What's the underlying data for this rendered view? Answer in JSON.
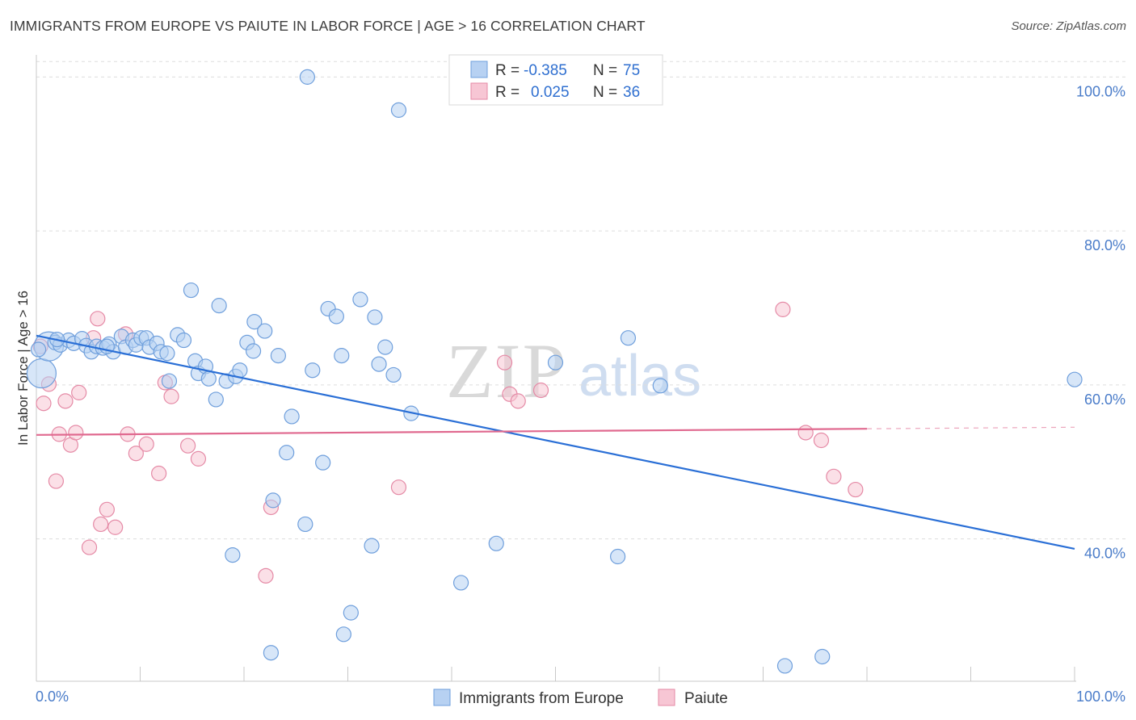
{
  "title": "IMMIGRANTS FROM EUROPE VS PAIUTE IN LABOR FORCE | AGE > 16 CORRELATION CHART",
  "source": "Source: ZipAtlas.com",
  "watermark": {
    "zip": "ZIP",
    "atlas": "atlas"
  },
  "legend": {
    "rows": [
      {
        "r_label": "R =",
        "r_value": "-0.385",
        "n_label": "N =",
        "n_value": "75"
      },
      {
        "r_label": "R =",
        "r_value": "0.025",
        "n_label": "N =",
        "n_value": "36"
      }
    ]
  },
  "bottom_legend": [
    "Immigrants from Europe",
    "Paiute"
  ],
  "colors": {
    "blue_fill": "#b7d1f2",
    "blue_stroke": "#6f9fdc",
    "blue_line": "#2a6fd6",
    "pink_fill": "#f7c6d4",
    "pink_stroke": "#e58aa6",
    "pink_line": "#e0698f",
    "axis_text": "#4a7cc9",
    "grid": "#dddddd"
  },
  "chart_data": {
    "type": "scatter",
    "title": "IMMIGRANTS FROM EUROPE VS PAIUTE IN LABOR FORCE | AGE > 16 CORRELATION CHART",
    "xlabel": "",
    "ylabel": "In Labor Force | Age > 16",
    "xlim": [
      0,
      100
    ],
    "ylim": [
      21.5,
      103.5
    ],
    "x_tick_labels": [
      "0.0%",
      "100.0%"
    ],
    "y_ticks": [
      40,
      60,
      80,
      100
    ],
    "y_tick_labels": [
      "40.0%",
      "60.0%",
      "80.0%",
      "100.0%"
    ],
    "grid": true,
    "legend_position": "top-center",
    "series": [
      {
        "name": "Immigrants from Europe",
        "r": -0.385,
        "n": 75,
        "trend": {
          "x": [
            0,
            100
          ],
          "y": [
            66.4,
            38.7
          ]
        },
        "points": [
          {
            "x": 0.5,
            "y": 61.5,
            "big": true
          },
          {
            "x": 1.2,
            "y": 65.0,
            "big": true
          },
          {
            "x": 1.8,
            "y": 65.5
          },
          {
            "x": 2.3,
            "y": 65.2
          },
          {
            "x": 3.1,
            "y": 65.8
          },
          {
            "x": 3.6,
            "y": 65.4
          },
          {
            "x": 4.4,
            "y": 66.0
          },
          {
            "x": 4.8,
            "y": 65.1
          },
          {
            "x": 5.3,
            "y": 64.3
          },
          {
            "x": 5.8,
            "y": 65.0
          },
          {
            "x": 6.4,
            "y": 64.8
          },
          {
            "x": 7.0,
            "y": 65.3
          },
          {
            "x": 7.4,
            "y": 64.3
          },
          {
            "x": 8.2,
            "y": 66.3
          },
          {
            "x": 8.6,
            "y": 64.9
          },
          {
            "x": 9.3,
            "y": 65.8
          },
          {
            "x": 9.6,
            "y": 65.2
          },
          {
            "x": 10.1,
            "y": 66.1
          },
          {
            "x": 10.6,
            "y": 66.1
          },
          {
            "x": 10.9,
            "y": 64.9
          },
          {
            "x": 11.6,
            "y": 65.4
          },
          {
            "x": 12.0,
            "y": 64.3
          },
          {
            "x": 12.6,
            "y": 64.1
          },
          {
            "x": 12.8,
            "y": 60.5
          },
          {
            "x": 13.6,
            "y": 66.5
          },
          {
            "x": 14.2,
            "y": 65.8
          },
          {
            "x": 14.9,
            "y": 72.3
          },
          {
            "x": 15.3,
            "y": 63.1
          },
          {
            "x": 15.6,
            "y": 61.5
          },
          {
            "x": 16.3,
            "y": 62.4
          },
          {
            "x": 16.6,
            "y": 60.8
          },
          {
            "x": 17.3,
            "y": 58.1
          },
          {
            "x": 17.6,
            "y": 70.3
          },
          {
            "x": 18.3,
            "y": 60.5
          },
          {
            "x": 18.9,
            "y": 37.9
          },
          {
            "x": 19.2,
            "y": 61.1
          },
          {
            "x": 19.6,
            "y": 61.9
          },
          {
            "x": 20.3,
            "y": 65.5
          },
          {
            "x": 20.9,
            "y": 64.4
          },
          {
            "x": 21.0,
            "y": 68.2
          },
          {
            "x": 22.0,
            "y": 67.0
          },
          {
            "x": 22.6,
            "y": 25.2
          },
          {
            "x": 22.8,
            "y": 45.0
          },
          {
            "x": 23.3,
            "y": 63.8
          },
          {
            "x": 24.1,
            "y": 51.2
          },
          {
            "x": 24.6,
            "y": 55.9
          },
          {
            "x": 25.9,
            "y": 41.9
          },
          {
            "x": 26.1,
            "y": 100.0
          },
          {
            "x": 26.6,
            "y": 61.9
          },
          {
            "x": 27.6,
            "y": 49.9
          },
          {
            "x": 28.1,
            "y": 69.9
          },
          {
            "x": 28.9,
            "y": 68.9
          },
          {
            "x": 29.4,
            "y": 63.8
          },
          {
            "x": 29.6,
            "y": 27.6
          },
          {
            "x": 30.3,
            "y": 30.4
          },
          {
            "x": 31.2,
            "y": 71.1
          },
          {
            "x": 32.3,
            "y": 39.1
          },
          {
            "x": 32.6,
            "y": 68.8
          },
          {
            "x": 33.0,
            "y": 62.7
          },
          {
            "x": 33.6,
            "y": 64.9
          },
          {
            "x": 34.4,
            "y": 61.3
          },
          {
            "x": 34.9,
            "y": 95.7
          },
          {
            "x": 36.1,
            "y": 56.3
          },
          {
            "x": 40.9,
            "y": 34.3
          },
          {
            "x": 44.3,
            "y": 39.4
          },
          {
            "x": 50.0,
            "y": 62.9
          },
          {
            "x": 56.0,
            "y": 37.7
          },
          {
            "x": 57.0,
            "y": 66.1
          },
          {
            "x": 60.1,
            "y": 59.9
          },
          {
            "x": 72.1,
            "y": 23.5
          },
          {
            "x": 75.7,
            "y": 24.7
          },
          {
            "x": 100.0,
            "y": 60.7
          },
          {
            "x": 0.2,
            "y": 64.6
          },
          {
            "x": 2.0,
            "y": 65.9
          },
          {
            "x": 6.8,
            "y": 65.0
          }
        ]
      },
      {
        "name": "Paiute",
        "r": 0.025,
        "n": 36,
        "trend": {
          "x": [
            0,
            80
          ],
          "y": [
            53.5,
            54.3
          ]
        },
        "trend_dashed": {
          "x": [
            80,
            100
          ],
          "y": [
            54.3,
            54.5
          ]
        },
        "points": [
          {
            "x": 0.4,
            "y": 65.0
          },
          {
            "x": 0.7,
            "y": 57.6
          },
          {
            "x": 1.2,
            "y": 60.1
          },
          {
            "x": 1.9,
            "y": 47.5
          },
          {
            "x": 2.2,
            "y": 53.6
          },
          {
            "x": 2.8,
            "y": 57.9
          },
          {
            "x": 3.3,
            "y": 52.2
          },
          {
            "x": 3.8,
            "y": 53.8
          },
          {
            "x": 4.1,
            "y": 59.0
          },
          {
            "x": 5.1,
            "y": 38.9
          },
          {
            "x": 5.5,
            "y": 66.1
          },
          {
            "x": 5.9,
            "y": 68.6
          },
          {
            "x": 6.2,
            "y": 41.9
          },
          {
            "x": 6.8,
            "y": 43.8
          },
          {
            "x": 7.6,
            "y": 41.5
          },
          {
            "x": 8.6,
            "y": 66.6
          },
          {
            "x": 8.8,
            "y": 53.6
          },
          {
            "x": 9.6,
            "y": 51.1
          },
          {
            "x": 10.6,
            "y": 52.3
          },
          {
            "x": 11.8,
            "y": 48.5
          },
          {
            "x": 12.4,
            "y": 60.3
          },
          {
            "x": 13.0,
            "y": 58.5
          },
          {
            "x": 14.6,
            "y": 52.1
          },
          {
            "x": 15.6,
            "y": 50.4
          },
          {
            "x": 22.1,
            "y": 35.2
          },
          {
            "x": 22.6,
            "y": 44.1
          },
          {
            "x": 34.9,
            "y": 46.7
          },
          {
            "x": 45.1,
            "y": 62.9
          },
          {
            "x": 45.6,
            "y": 58.8
          },
          {
            "x": 46.4,
            "y": 57.9
          },
          {
            "x": 48.6,
            "y": 59.3
          },
          {
            "x": 71.9,
            "y": 69.8
          },
          {
            "x": 74.1,
            "y": 53.8
          },
          {
            "x": 75.6,
            "y": 52.8
          },
          {
            "x": 76.8,
            "y": 48.1
          },
          {
            "x": 78.9,
            "y": 46.4
          }
        ]
      }
    ]
  }
}
